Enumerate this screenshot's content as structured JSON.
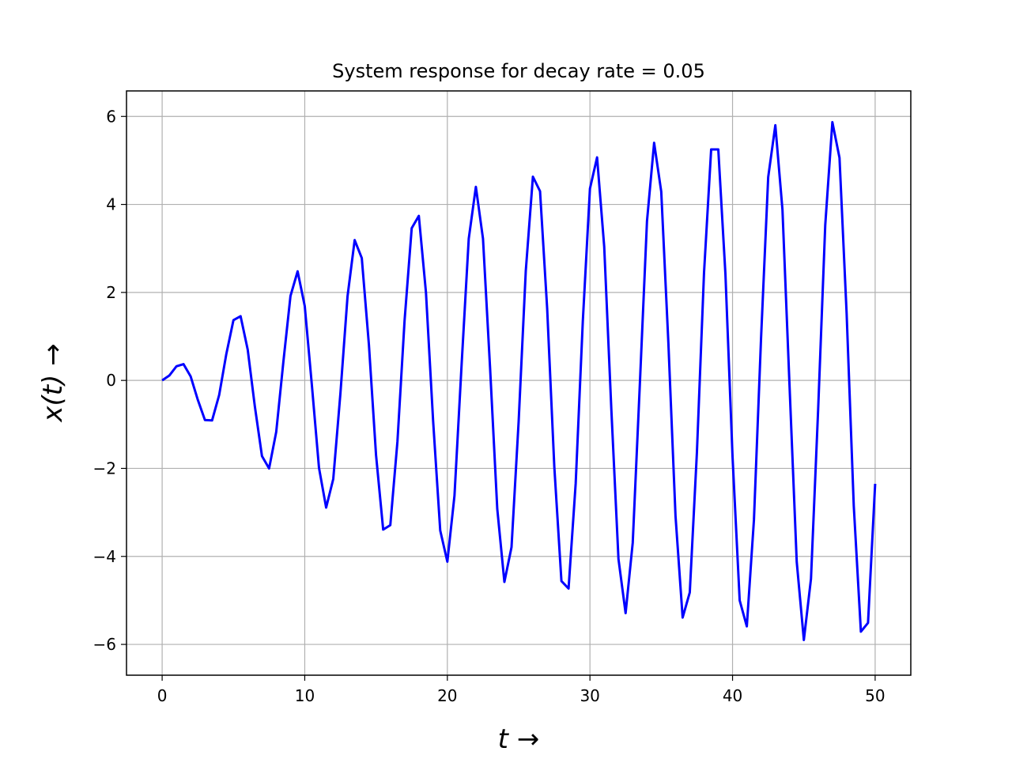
{
  "chart_data": {
    "type": "line",
    "title": "System response for decay rate = 0.05",
    "xlabel": "t →",
    "ylabel": "x(t) →",
    "x": [
      0,
      0.5,
      1,
      1.5,
      2,
      2.5,
      3,
      3.5,
      4,
      4.5,
      5,
      5.5,
      6,
      6.5,
      7,
      7.5,
      8,
      8.5,
      9,
      9.5,
      10,
      10.5,
      11,
      11.5,
      12,
      12.5,
      13,
      13.5,
      14,
      14.5,
      15,
      15.5,
      16,
      16.5,
      17,
      17.5,
      18,
      18.5,
      19,
      19.5,
      20,
      20.5,
      21,
      21.5,
      22,
      22.5,
      23,
      23.5,
      24,
      24.5,
      25,
      25.5,
      26,
      26.5,
      27,
      27.5,
      28,
      28.5,
      29,
      29.5,
      30,
      30.5,
      31,
      31.5,
      32,
      32.5,
      33,
      33.5,
      34,
      34.5,
      35,
      35.5,
      36,
      36.5,
      37,
      37.5,
      38,
      38.5,
      39,
      39.5,
      40,
      40.5,
      41,
      41.5,
      42,
      42.5,
      43,
      43.5,
      44,
      44.5,
      45,
      45.5,
      46,
      46.5,
      47,
      47.5,
      48,
      48.5,
      49,
      49.5,
      50
    ],
    "series": [
      {
        "color": "#0000ff",
        "values": [
          0,
          0.11,
          0.32,
          0.37,
          0.09,
          -0.44,
          -0.9,
          -0.91,
          -0.33,
          0.6,
          1.37,
          1.46,
          0.7,
          -0.59,
          -1.72,
          -2.0,
          -1.17,
          0.42,
          1.92,
          2.48,
          1.69,
          -0.11,
          -1.99,
          -2.89,
          -2.24,
          -0.3,
          1.91,
          3.19,
          2.78,
          0.81,
          -1.7,
          -3.39,
          -3.29,
          -1.39,
          1.36,
          3.46,
          3.74,
          2.0,
          -0.91,
          -3.41,
          -4.12,
          -2.62,
          0.36,
          3.22,
          4.4,
          3.22,
          0.26,
          -2.92,
          -4.58,
          -3.79,
          -0.93,
          2.49,
          4.63,
          4.3,
          1.63,
          -1.96,
          -4.56,
          -4.73,
          -2.34,
          1.35,
          4.36,
          5.07,
          3.04,
          -0.66,
          -4.06,
          -5.29,
          -3.69,
          -0.08,
          3.62,
          5.4,
          4.29,
          0.85,
          -3.08,
          -5.39,
          -4.82,
          -1.64,
          2.45,
          5.25,
          5.25,
          2.42,
          -1.74,
          -5.0,
          -5.59,
          -3.17,
          0.97,
          4.62,
          5.8,
          3.88,
          -0.15,
          -4.12,
          -5.9,
          -4.51,
          -0.68,
          3.53,
          5.87,
          5.06,
          1.52,
          -2.85,
          -5.71,
          -5.51,
          -2.35
        ]
      }
    ],
    "xlim": [
      -2.5,
      52.5
    ],
    "xticks": [
      0,
      10,
      20,
      30,
      40,
      50
    ],
    "ylim": [
      -6.7,
      6.58
    ],
    "yticks": [
      {
        "value": -6,
        "label": "−6"
      },
      {
        "value": -4,
        "label": "−4"
      },
      {
        "value": -2,
        "label": "−2"
      },
      0,
      2,
      4,
      6
    ],
    "grid": true
  }
}
